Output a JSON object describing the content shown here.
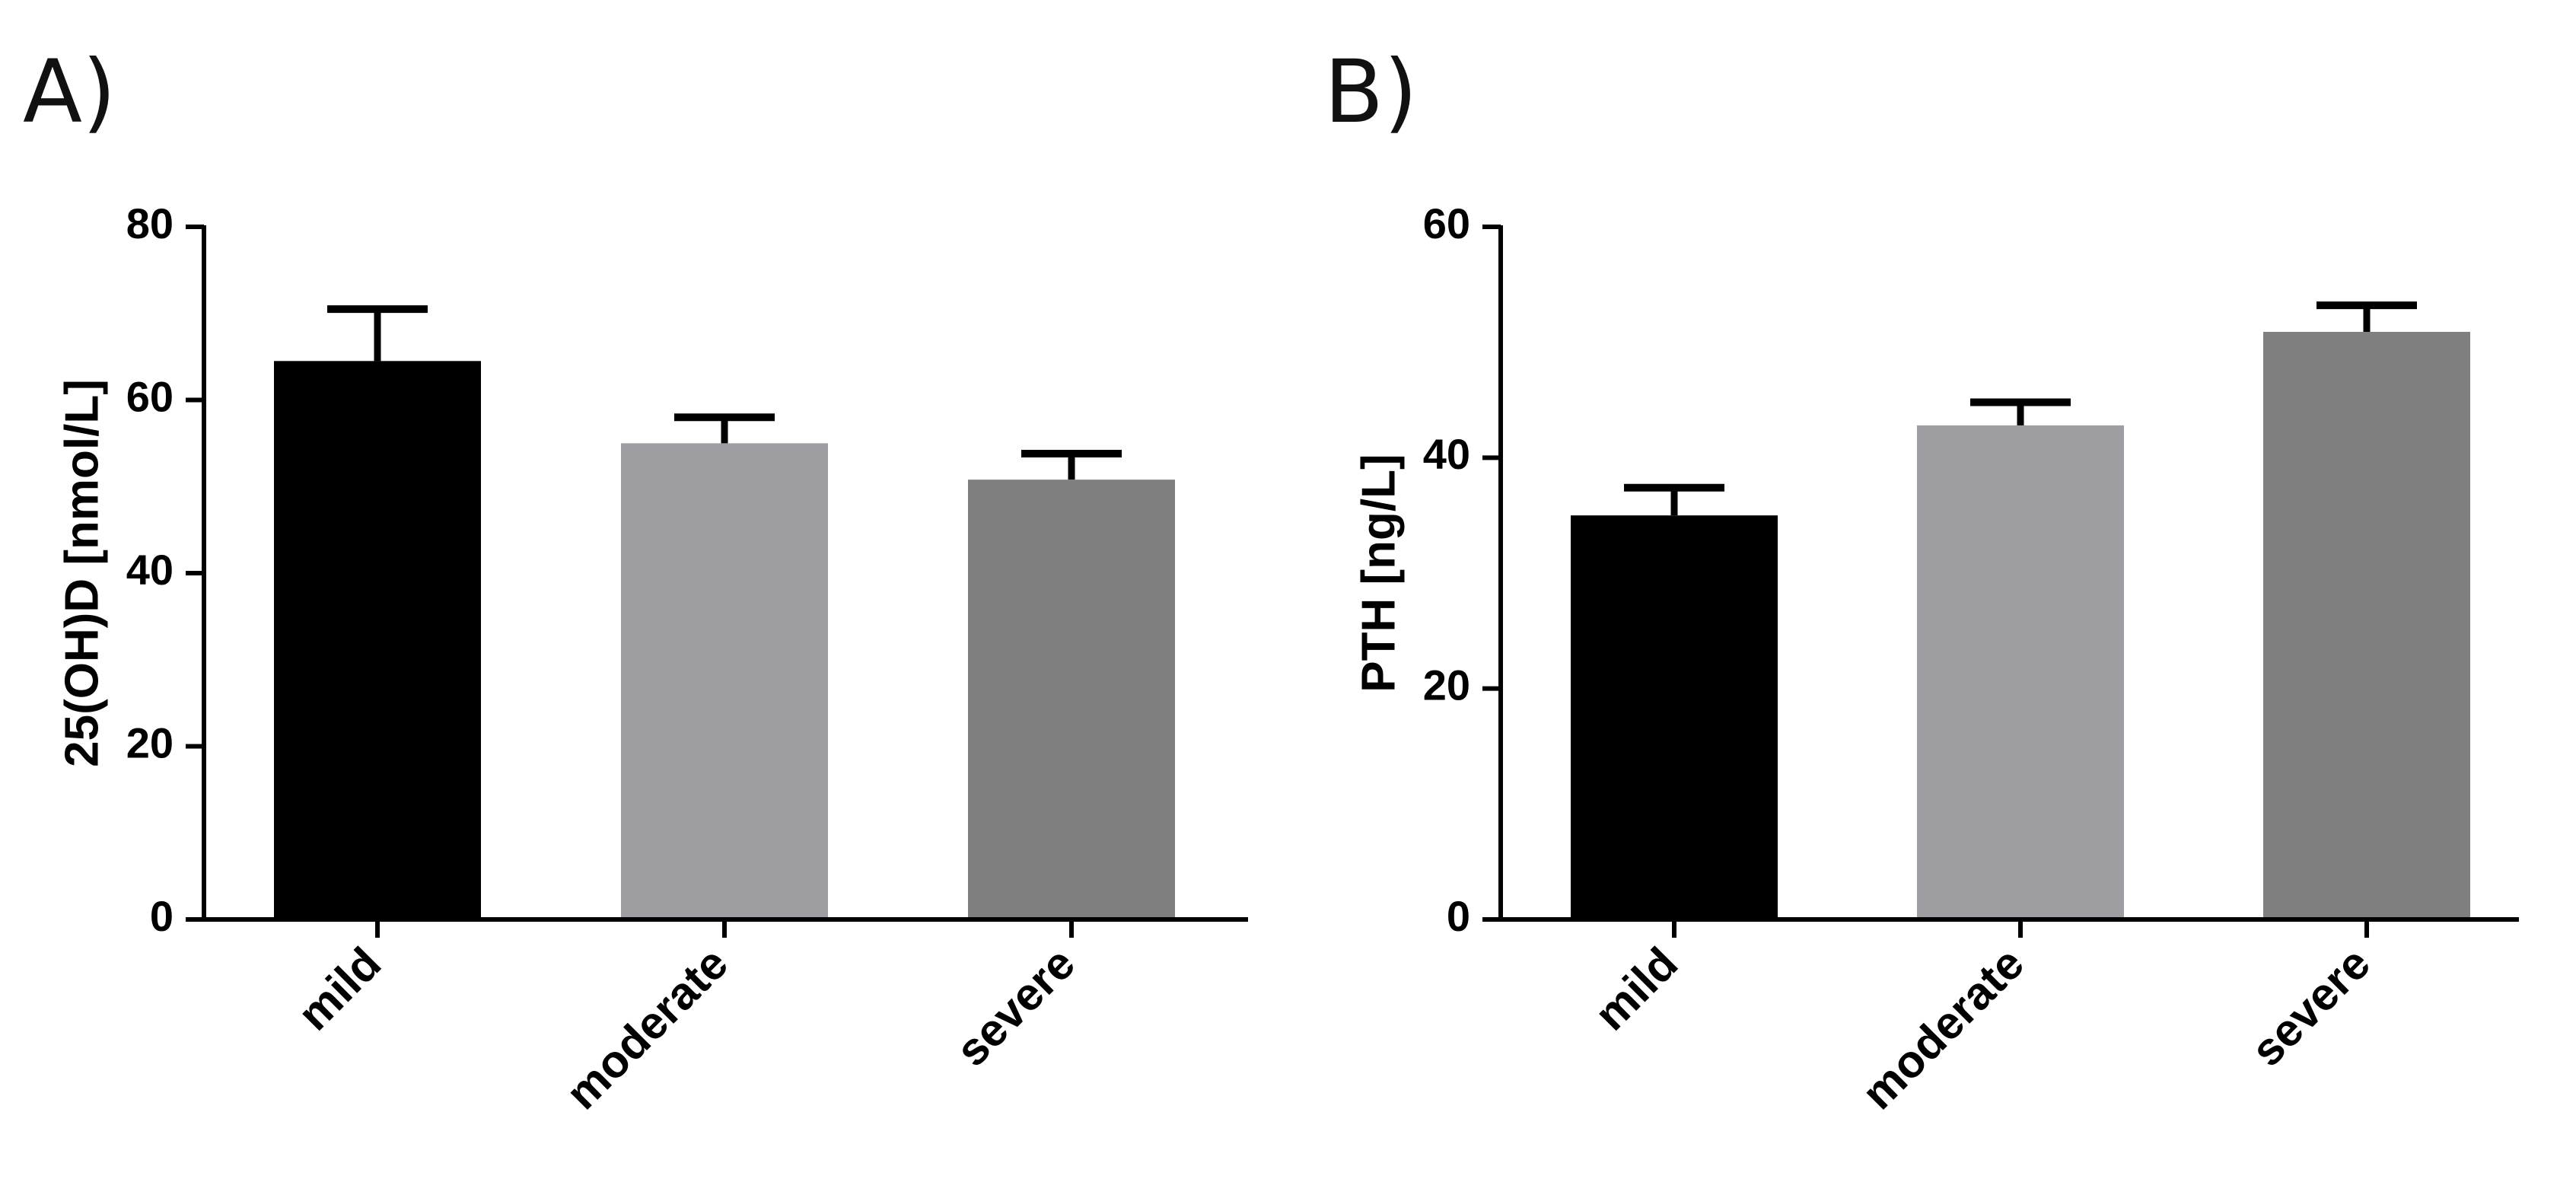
{
  "chart_data": [
    {
      "panel_label": "A)",
      "type": "bar",
      "categories": [
        "mild",
        "moderate",
        "severe"
      ],
      "values": [
        64.5,
        55.0,
        50.8
      ],
      "errors": [
        6.0,
        3.0,
        3.0
      ],
      "colors": [
        "#000000",
        "#9e9ea2",
        "#7f7f7f"
      ],
      "ylabel": "25(OH)D [nmol/L]",
      "ylim": [
        0,
        80
      ],
      "yticks": [
        0,
        20,
        40,
        60,
        80
      ],
      "grid": false,
      "legend": "none"
    },
    {
      "panel_label": "B)",
      "type": "bar",
      "categories": [
        "mild",
        "moderate",
        "severe"
      ],
      "values": [
        35.0,
        42.8,
        50.9
      ],
      "errors": [
        2.4,
        2.0,
        2.3
      ],
      "colors": [
        "#000000",
        "#9e9ea2",
        "#7f7f7f"
      ],
      "ylabel": "PTH [ng/L]",
      "ylim": [
        0,
        60
      ],
      "yticks": [
        0,
        20,
        40,
        60
      ],
      "grid": false,
      "legend": "none"
    }
  ]
}
